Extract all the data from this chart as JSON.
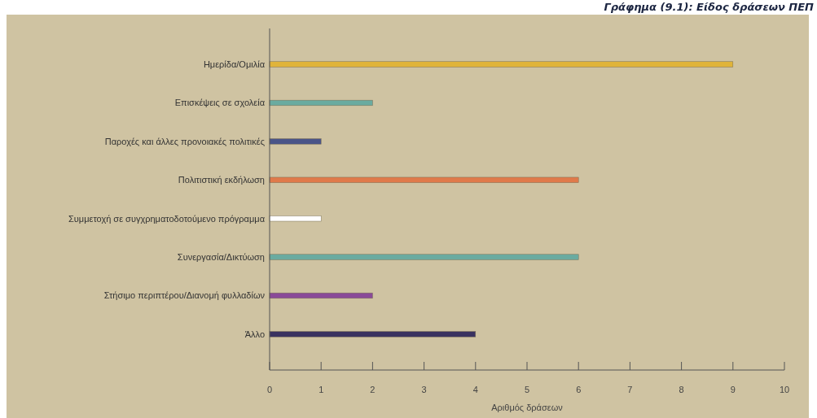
{
  "chart_data": {
    "type": "bar",
    "orientation": "horizontal",
    "title": "Γράφημα (9.1): Είδος δράσεων ΠΕΠ",
    "xlabel": "Αριθμός δράσεων",
    "categories": [
      "Ημερίδα/Ομιλία",
      "Επισκέψεις σε σχολεία",
      "Παροχές και άλλες προνοιακές πολιτικές",
      "Πολιτιστική εκδήλωση",
      "Συμμετοχή σε συγχρηματοδοτούμενο πρόγραμμα",
      "Συνεργασία/Δικτύωση",
      "Στήσιμο περιπτέρου/Διανομή φυλλαδίων",
      "Άλλο"
    ],
    "values": [
      9,
      2,
      1,
      6,
      1,
      6,
      2,
      4
    ],
    "colors": [
      "#e0b43a",
      "#6aaba0",
      "#4a5488",
      "#e07a4a",
      "#ffffff",
      "#6aaba0",
      "#8a4a98",
      "#3a3260"
    ],
    "xlim": [
      0,
      10
    ],
    "xticks": [
      0,
      1,
      2,
      3,
      4,
      5,
      6,
      7,
      8,
      9,
      10
    ],
    "grid": false
  }
}
